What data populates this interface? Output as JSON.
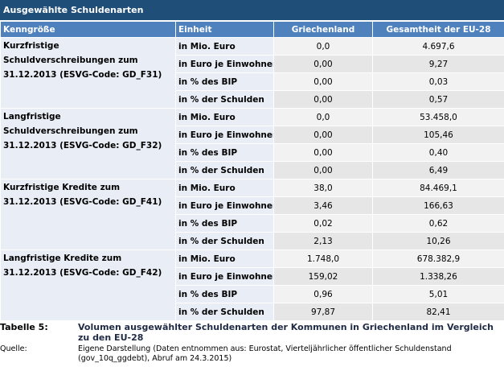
{
  "title": "Ausgewählte Schuldenarten",
  "headers": [
    "Kenngröße",
    "Einheit",
    "Griechenland",
    "Gesamtheit der EU-28"
  ],
  "groups": [
    {
      "label": "Kurzfristige Schuldverschreibungen zum 31.12.2013 (ESVG-Code: GD_F31)",
      "rows": [
        {
          "unit": "in Mio. Euro",
          "gr": "0,0",
          "eu": "4.697,6"
        },
        {
          "unit": "in Euro je Einwohner",
          "gr": "0,00",
          "eu": "9,27"
        },
        {
          "unit": "in % des BIP",
          "gr": "0,00",
          "eu": "0,03"
        },
        {
          "unit": "in % der Schulden",
          "gr": "0,00",
          "eu": "0,57"
        }
      ]
    },
    {
      "label": "Langfristige Schuldverschreibungen zum 31.12.2013 (ESVG-Code: GD_F32)",
      "rows": [
        {
          "unit": "in Mio. Euro",
          "gr": "0,0",
          "eu": "53.458,0"
        },
        {
          "unit": "in Euro je Einwohner",
          "gr": "0,00",
          "eu": "105,46"
        },
        {
          "unit": "in % des BIP",
          "gr": "0,00",
          "eu": "0,40"
        },
        {
          "unit": "in % der Schulden",
          "gr": "0,00",
          "eu": "6,49"
        }
      ]
    },
    {
      "label": "Kurzfristige Kredite zum 31.12.2013 (ESVG-Code: GD_F41)",
      "rows": [
        {
          "unit": "in Mio. Euro",
          "gr": "38,0",
          "eu": "84.469,1"
        },
        {
          "unit": "in Euro je Einwohner",
          "gr": "3,46",
          "eu": "166,63"
        },
        {
          "unit": "in % des BIP",
          "gr": "0,02",
          "eu": "0,62"
        },
        {
          "unit": "in % der Schulden",
          "gr": "2,13",
          "eu": "10,26"
        }
      ]
    },
    {
      "label": "Langfristige Kredite zum 31.12.2013 (ESVG-Code: GD_F42)",
      "rows": [
        {
          "unit": "in Mio. Euro",
          "gr": "1.748,0",
          "eu": "678.382,9"
        },
        {
          "unit": "in Euro je Einwohner",
          "gr": "159,02",
          "eu": "1.338,26"
        },
        {
          "unit": "in % des BIP",
          "gr": "0,96",
          "eu": "5,01"
        },
        {
          "unit": "in % der Schulden",
          "gr": "97,87",
          "eu": "82,41"
        }
      ]
    }
  ],
  "caption": {
    "label": "Tabelle 5:",
    "text": "Volumen ausgewählter Schuldenarten der Kommunen in Griechenland im Vergleich zu den EU-28"
  },
  "source": {
    "label": "Quelle:",
    "text": "Eigene Darstellung (Daten entnommen aus: Eurostat, Vierteljährlicher öffentlicher Schuldenstand (gov_10q_ggdebt), Abruf am 24.3.2015)"
  },
  "colors": {
    "title_bg": "#1f4e79",
    "header_bg": "#4f81bd",
    "label_bg": "#e9eef6"
  }
}
